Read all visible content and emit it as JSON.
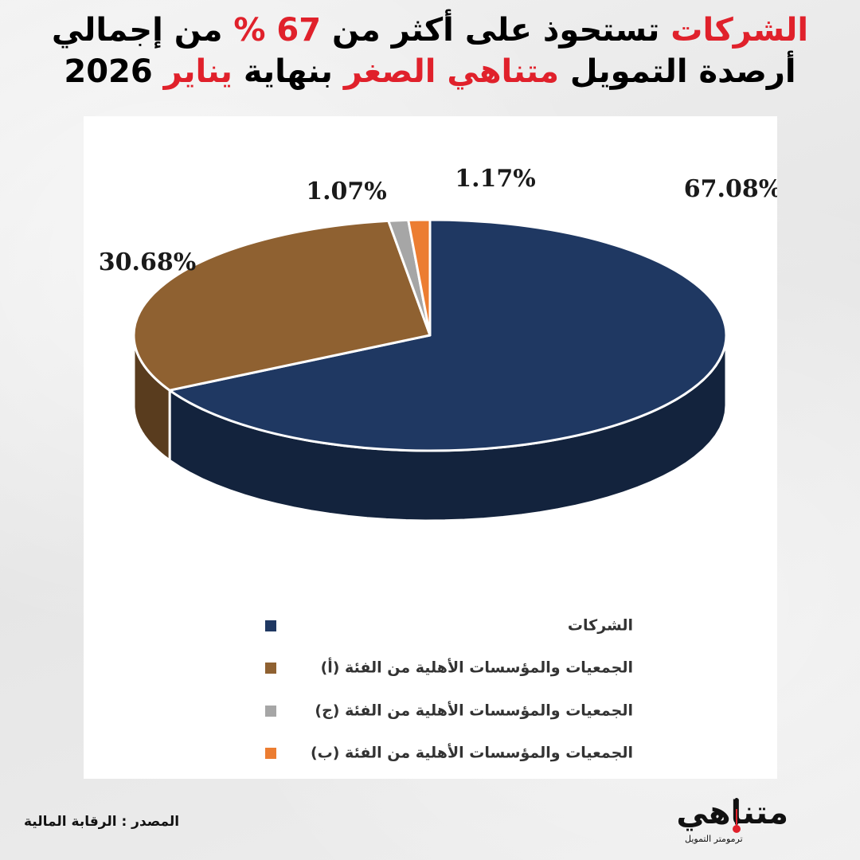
{
  "headline": {
    "line1": [
      {
        "text": "الشركات",
        "color": "#e0212b"
      },
      {
        "text": " تستحوذ على أكثر من ",
        "color": "#000000"
      },
      {
        "text": "67 %",
        "color": "#e0212b"
      },
      {
        "text": " من إجمالي",
        "color": "#000000"
      }
    ],
    "line2": [
      {
        "text": "أرصدة التمويل ",
        "color": "#000000"
      },
      {
        "text": "متناهي الصغر",
        "color": "#e0212b"
      },
      {
        "text": " بنهاية ",
        "color": "#000000"
      },
      {
        "text": "يناير",
        "color": "#e0212b"
      },
      {
        "text": " 2026",
        "color": "#000000"
      }
    ]
  },
  "chart_data": {
    "type": "pie",
    "style": "3d",
    "slices": [
      {
        "name": "الشركات",
        "value": 67.08,
        "label": "67.08%",
        "color": "#1f3862"
      },
      {
        "name": "الجمعيات والمؤسسات الأهلية من الفئة  (أ)",
        "value": 30.68,
        "label": "30.68%",
        "color": "#8f6131"
      },
      {
        "name": "الجمعيات والمؤسسات الأهلية من الفئة (ج)",
        "value": 1.07,
        "label": "1.07%",
        "color": "#a6a6a6"
      },
      {
        "name": "الجمعيات والمؤسسات الأهلية من الفئة (ب)",
        "value": 1.17,
        "label": "1.17%",
        "color": "#ec7d31"
      }
    ],
    "legend_position": "bottom"
  },
  "source": "المصدر : الرقابة المالية",
  "logo": {
    "name": "متناهي",
    "tagline": "ترمومتر التمويل",
    "accent": "#e0212b"
  }
}
